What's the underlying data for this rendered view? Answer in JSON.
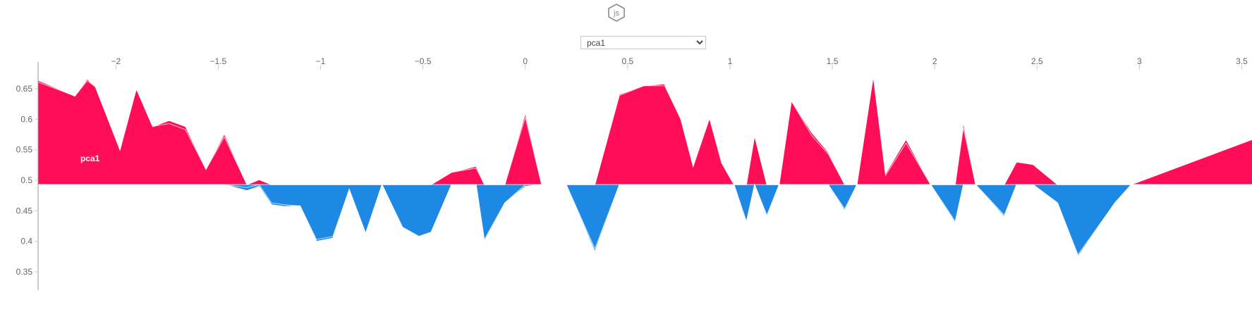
{
  "header": {
    "badge_text": "js",
    "badge_icon": "hexagon-js-icon"
  },
  "selector": {
    "selected": "pca1",
    "options": [
      "pca1"
    ]
  },
  "colors": {
    "positive": "#ff0d57",
    "negative": "#1e88e5",
    "separator": "#ffffff",
    "axis": "#999999"
  },
  "chart_data": {
    "type": "area",
    "x": [
      -2.38,
      -2.2,
      -2.14,
      -2.1,
      -1.98,
      -1.9,
      -1.82,
      -1.74,
      -1.66,
      -1.56,
      -1.47,
      -1.36,
      -1.3,
      -1.24,
      -1.18,
      -1.1,
      -1.02,
      -0.94,
      -0.86,
      -0.78,
      -0.7,
      -0.6,
      -0.52,
      -0.46,
      -0.36,
      -0.24,
      -0.2,
      -0.1,
      0,
      0.08,
      0.2,
      0.34,
      0.46,
      0.58,
      0.68,
      0.76,
      0.82,
      0.9,
      0.96,
      1.02,
      1.08,
      1.12,
      1.18,
      1.24,
      1.3,
      1.4,
      1.48,
      1.56,
      1.62,
      1.7,
      1.76,
      1.86,
      1.98,
      2.1,
      2.14,
      2.2,
      2.34,
      2.4,
      2.48,
      2.6,
      2.7,
      2.88,
      2.96,
      3.6
    ],
    "base_value": 0.493,
    "x_ticks": [
      -2,
      -1.5,
      -1,
      -0.5,
      0,
      0.5,
      1,
      1.5,
      2,
      2.5,
      3,
      3.5
    ],
    "x_tick_labels": [
      "−2",
      "−1.5",
      "−1",
      "−0.5",
      "0",
      "0.5",
      "1",
      "1.5",
      "2",
      "2.5",
      "3",
      "3.5"
    ],
    "y_ticks": [
      0.35,
      0.4,
      0.45,
      0.5,
      0.55,
      0.6,
      0.65
    ],
    "y_tick_labels": [
      "0.35",
      "0.4",
      "0.45",
      "0.5",
      "0.55",
      "0.6",
      "0.65"
    ],
    "xlim": [
      -2.38,
      3.55
    ],
    "ylim": [
      0.32,
      0.68
    ],
    "series": [
      {
        "name": "pca1",
        "positive": [
          0.168,
          0.145,
          0.17,
          0.16,
          0.057,
          0.157,
          0.095,
          0.1,
          0.09,
          0.025,
          0.078,
          0.0,
          0.008,
          0.0,
          0.0,
          0.0,
          0.0,
          0.0,
          0.0,
          0.0,
          0.0,
          0.0,
          0.0,
          0.0,
          0.02,
          0.027,
          0.0,
          0.0,
          0.11,
          0.0,
          0.0,
          0.0,
          0.146,
          0.162,
          0.162,
          0.107,
          0.03,
          0.108,
          0.035,
          0.0,
          0.0,
          0.08,
          0.0,
          0.0,
          0.137,
          0.08,
          0.05,
          0.0,
          0.0,
          0.178,
          0.015,
          0.068,
          0.0,
          0.0,
          0.093,
          0.0,
          0.0,
          0.037,
          0.033,
          0.0,
          0.0,
          0.0,
          0.0,
          0.08
        ],
        "negative": [
          0.0,
          0.0,
          0.0,
          0.0,
          0.0,
          0.0,
          0.0,
          0.0,
          0.0,
          0.0,
          0.0,
          0.005,
          0.0,
          0.03,
          0.033,
          0.035,
          0.09,
          0.085,
          0.008,
          0.08,
          0.0,
          0.07,
          0.085,
          0.078,
          0.0,
          0.0,
          0.09,
          0.03,
          0.0,
          0.0,
          0.0,
          0.105,
          0.0,
          0.0,
          0.0,
          0.0,
          0.0,
          0.0,
          0.0,
          0.0,
          0.06,
          0.0,
          0.05,
          0.0,
          0.0,
          0.0,
          0.0,
          0.04,
          0.0,
          0.0,
          0.0,
          0.0,
          0.0,
          0.06,
          0.0,
          0.0,
          0.05,
          0.0,
          0.0,
          0.03,
          0.115,
          0.03,
          0.0,
          0.0
        ]
      },
      {
        "name": "",
        "positive": [
          0.003,
          0.0,
          0.003,
          0.0,
          0.0,
          0.0,
          0.0,
          0.005,
          0.005,
          0.0,
          0.005,
          0.0,
          0.0,
          0.0,
          0.0,
          0.0,
          0.0,
          0.0,
          0.0,
          0.0,
          0.0,
          0.0,
          0.0,
          0.0,
          0.0,
          0.003,
          0.0,
          0.0,
          0.007,
          0.0,
          0.0,
          0.0,
          0.002,
          0.0,
          0.003,
          0.0,
          0.0,
          0.002,
          0.0,
          0.0,
          0.0,
          0.0,
          0.0,
          0.0,
          0.0,
          0.005,
          0.003,
          0.0,
          0.0,
          0.0,
          0.003,
          0.006,
          0.0,
          0.0,
          0.008,
          0.0,
          0.0,
          0.0,
          0.0,
          0.0,
          0.0,
          0.0,
          0.0,
          0.0
        ],
        "negative": [
          0.0,
          0.0,
          0.0,
          0.0,
          0.0,
          0.0,
          0.0,
          0.0,
          0.0,
          0.0,
          0.0,
          0.005,
          0.003,
          0.003,
          0.003,
          0.0,
          0.003,
          0.003,
          0.0,
          0.0,
          0.0,
          0.0,
          0.0,
          0.0,
          0.0,
          0.0,
          0.003,
          0.0,
          0.003,
          0.0,
          0.0,
          0.005,
          0.0,
          0.0,
          0.0,
          0.0,
          0.0,
          0.0,
          0.0,
          0.0,
          0.003,
          0.0,
          0.003,
          0.0,
          0.0,
          0.0,
          0.0,
          0.003,
          0.0,
          0.0,
          0.0,
          0.0,
          0.0,
          0.003,
          0.0,
          0.0,
          0.003,
          0.0,
          0.0,
          0.0,
          0.003,
          0.0,
          0.0,
          0.0
        ]
      },
      {
        "name": "",
        "positive": [
          0.0,
          0.0,
          0.0,
          0.0,
          0.0,
          0.0,
          0.0,
          0.0,
          0.0,
          0.0,
          0.0,
          0.0,
          0.0,
          0.0,
          0.0,
          0.0,
          0.0,
          0.0,
          0.0,
          0.0,
          0.0,
          0.0,
          0.0,
          0.0,
          0.0,
          0.0,
          0.0,
          0.0,
          0.0,
          0.0,
          0.0,
          0.0,
          0.0,
          0.0,
          0.0,
          0.0,
          0.0,
          0.0,
          0.0,
          0.0,
          0.0,
          0.0,
          0.0,
          0.0,
          0.0,
          0.0,
          0.0,
          0.0,
          0.0,
          0.0,
          0.0,
          0.0,
          0.0,
          0.0,
          0.0,
          0.0,
          0.0,
          0.0,
          0.0,
          0.0,
          0.0,
          0.0,
          0.0,
          0.0
        ],
        "negative": [
          0.0,
          0.0,
          0.0,
          0.0,
          0.0,
          0.0,
          0.0,
          0.0,
          0.0,
          0.0,
          0.0,
          0.0,
          0.0,
          0.0,
          0.0,
          0.0,
          0.0,
          0.0,
          0.0,
          0.0,
          0.0,
          0.0,
          0.0,
          0.0,
          0.0,
          0.0,
          0.0,
          0.0,
          0.0,
          0.0,
          0.0,
          0.0,
          0.0,
          0.0,
          0.0,
          0.0,
          0.0,
          0.0,
          0.0,
          0.0,
          0.0,
          0.0,
          0.0,
          0.0,
          0.0,
          0.0,
          0.0,
          0.0,
          0.0,
          0.0,
          0.0,
          0.0,
          0.0,
          0.0,
          0.0,
          0.0,
          0.0,
          0.0,
          0.0,
          0.0,
          0.0,
          0.0,
          0.0,
          0.0
        ]
      },
      {
        "name": "",
        "positive": [
          0.0,
          0.0,
          0.0,
          0.0,
          0.0,
          0.0,
          0.0,
          0.0,
          0.0,
          0.0,
          0.0,
          0.0,
          0.0,
          0.0,
          0.0,
          0.0,
          0.0,
          0.0,
          0.0,
          0.0,
          0.0,
          0.0,
          0.0,
          0.0,
          0.0,
          0.0,
          0.0,
          0.0,
          0.0,
          0.0,
          0.0,
          0.0,
          0.0,
          0.0,
          0.0,
          0.0,
          0.0,
          0.0,
          0.0,
          0.0,
          0.0,
          0.0,
          0.0,
          0.0,
          0.0,
          0.0,
          0.0,
          0.0,
          0.0,
          0.0,
          0.0,
          0.0,
          0.0,
          0.0,
          0.0,
          0.0,
          0.0,
          0.0,
          0.0,
          0.0,
          0.0,
          0.0,
          0.0,
          0.0
        ],
        "negative": [
          0.0,
          0.0,
          0.0,
          0.0,
          0.0,
          0.0,
          0.0,
          0.0,
          0.0,
          0.0,
          0.0,
          0.0,
          0.0,
          0.0,
          0.0,
          0.0,
          0.0,
          0.0,
          0.0,
          0.0,
          0.0,
          0.0,
          0.0,
          0.0,
          0.0,
          0.0,
          0.0,
          0.0,
          0.0,
          0.0,
          0.0,
          0.0,
          0.0,
          0.0,
          0.0,
          0.0,
          0.0,
          0.0,
          0.0,
          0.0,
          0.0,
          0.0,
          0.0,
          0.0,
          0.0,
          0.0,
          0.0,
          0.0,
          0.0,
          0.0,
          0.0,
          0.0,
          0.0,
          0.0,
          0.0,
          0.0,
          0.0,
          0.0,
          0.0,
          0.0,
          0.0,
          0.0,
          0.0,
          0.0
        ]
      }
    ],
    "grid": false,
    "label_feature": "pca1"
  }
}
